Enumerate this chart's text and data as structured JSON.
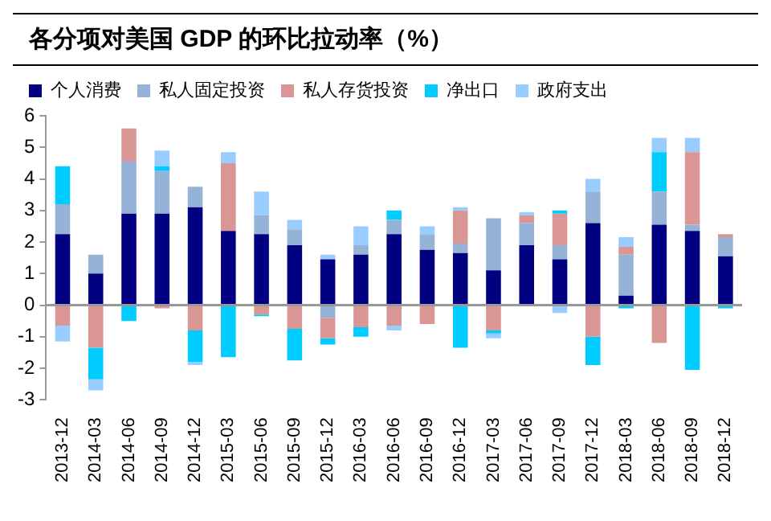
{
  "chart_data": {
    "type": "bar",
    "title": "各分项对美国 GDP 的环比拉动率（%）",
    "stacked": true,
    "legend": "top",
    "categories": [
      "2013-12",
      "2014-03",
      "2014-06",
      "2014-09",
      "2014-12",
      "2015-03",
      "2015-06",
      "2015-09",
      "2015-12",
      "2016-03",
      "2016-06",
      "2016-09",
      "2016-12",
      "2017-03",
      "2017-06",
      "2017-09",
      "2017-12",
      "2018-03",
      "2018-06",
      "2018-09",
      "2018-12"
    ],
    "series": [
      {
        "name": "个人消费",
        "color": "#000080",
        "values": [
          2.25,
          1.0,
          2.9,
          2.9,
          3.1,
          2.35,
          2.25,
          1.9,
          1.45,
          1.6,
          2.25,
          1.75,
          1.65,
          1.1,
          1.9,
          1.45,
          2.6,
          0.3,
          2.55,
          2.35,
          1.55
        ]
      },
      {
        "name": "私人固定投资",
        "color": "#95b3d7",
        "values": [
          0.95,
          0.6,
          1.65,
          1.35,
          0.65,
          0,
          0.6,
          0.5,
          -0.4,
          0.3,
          0.45,
          0.5,
          0.3,
          1.65,
          0.7,
          0.45,
          1.0,
          1.3,
          1.05,
          0.2,
          0.6
        ]
      },
      {
        "name": "私人存货投资",
        "color": "#d99694",
        "values": [
          -0.65,
          -1.35,
          1.05,
          -0.1,
          -0.8,
          2.15,
          -0.3,
          -0.75,
          -0.65,
          -0.7,
          -0.65,
          -0.6,
          1.05,
          -0.8,
          0.25,
          1.0,
          -1.0,
          0.25,
          -1.2,
          2.3,
          0.1
        ]
      },
      {
        "name": "净出口",
        "color": "#00ccff",
        "values": [
          1.2,
          -1.0,
          -0.5,
          0.15,
          -1.0,
          -1.65,
          -0.05,
          -1.0,
          -0.2,
          -0.3,
          0.3,
          0,
          -1.35,
          -0.1,
          0,
          0.1,
          -0.9,
          -0.1,
          1.25,
          -2.05,
          -0.1
        ]
      },
      {
        "name": "政府支出",
        "color": "#99ccff",
        "values": [
          -0.5,
          -0.35,
          0,
          0.5,
          -0.1,
          0.35,
          0.75,
          0.3,
          0.15,
          0.6,
          -0.15,
          0.25,
          0.1,
          -0.15,
          0.1,
          -0.25,
          0.4,
          0.3,
          0.45,
          0.45,
          0
        ]
      }
    ],
    "ylim": [
      -3,
      6
    ],
    "yticks": [
      -3,
      -2,
      -1,
      0,
      1,
      2,
      3,
      4,
      5,
      6
    ],
    "grid": false,
    "ref_lines": [
      {
        "axis": "y",
        "value": 0,
        "color": "#999999"
      }
    ]
  }
}
